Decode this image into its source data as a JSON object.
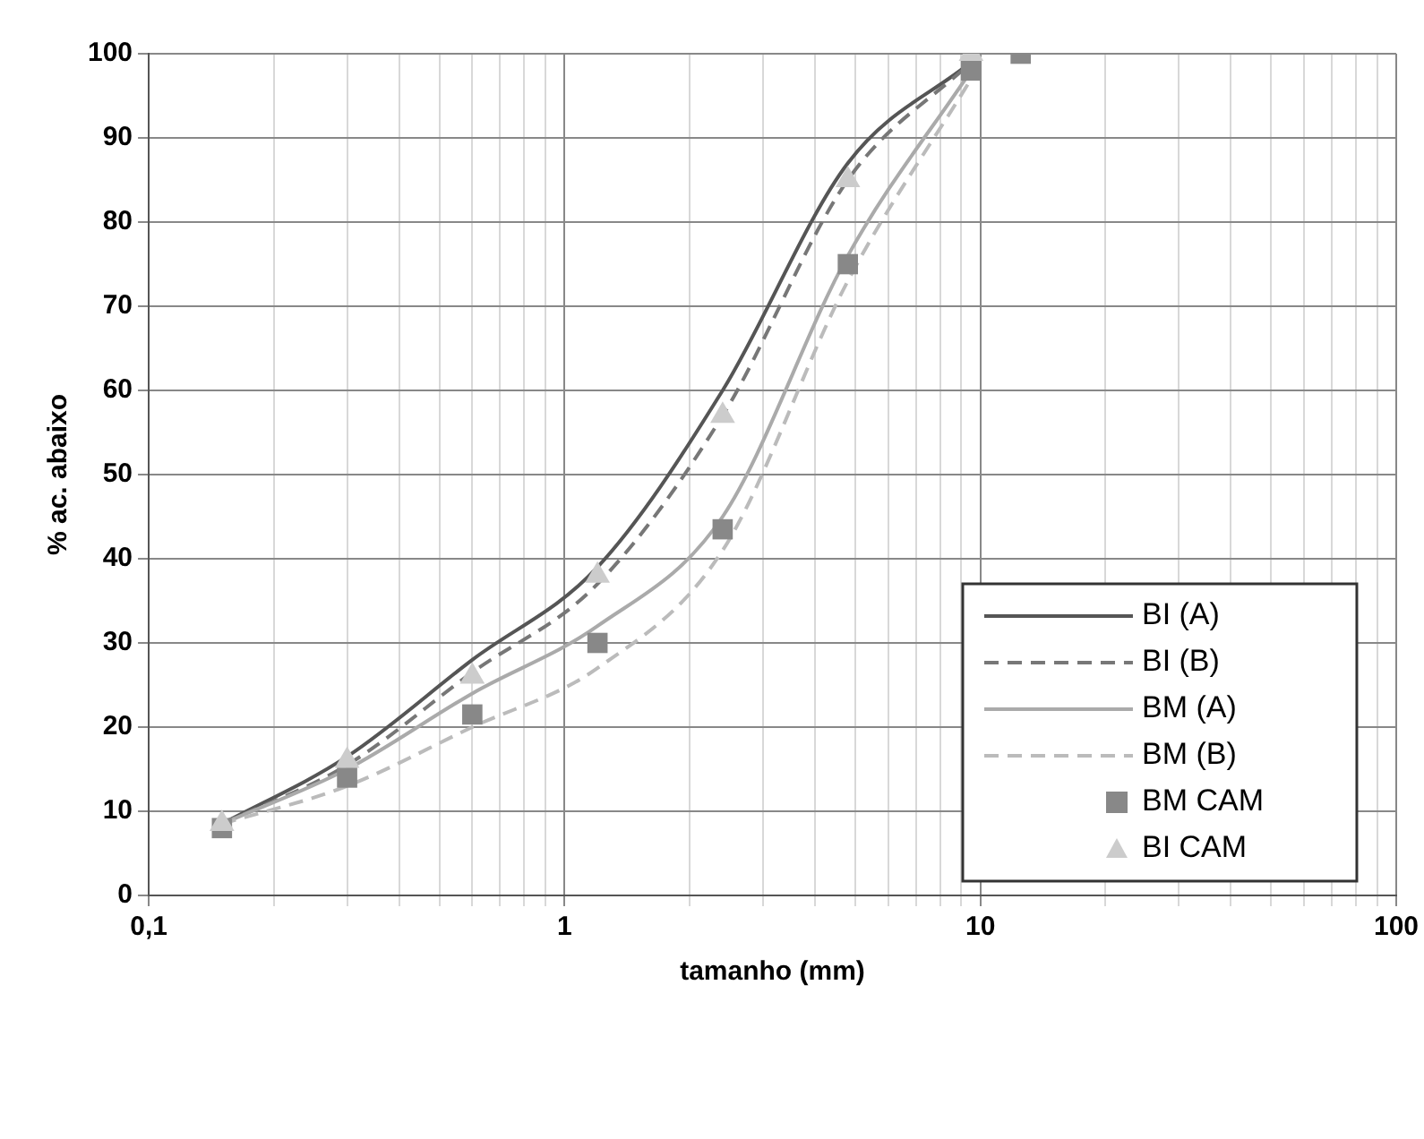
{
  "chart_data": {
    "type": "line",
    "xlabel": "tamanho (mm)",
    "ylabel": "% ac. abaixo",
    "log": "x",
    "xlim": [
      0.1,
      100
    ],
    "ylim": [
      0,
      100
    ],
    "xticks": [
      {
        "value": 0.1,
        "label": "0,1"
      },
      {
        "value": 0.2,
        "label": null
      },
      {
        "value": 0.3,
        "label": null
      },
      {
        "value": 0.4,
        "label": null
      },
      {
        "value": 0.5,
        "label": null
      },
      {
        "value": 0.6,
        "label": null
      },
      {
        "value": 0.7,
        "label": null
      },
      {
        "value": 0.8,
        "label": null
      },
      {
        "value": 0.9,
        "label": null
      },
      1,
      {
        "value": 2,
        "label": null
      },
      {
        "value": 3,
        "label": null
      },
      {
        "value": 4,
        "label": null
      },
      {
        "value": 5,
        "label": null
      },
      {
        "value": 6,
        "label": null
      },
      {
        "value": 7,
        "label": null
      },
      {
        "value": 8,
        "label": null
      },
      {
        "value": 9,
        "label": null
      },
      10,
      {
        "value": 20,
        "label": null
      },
      {
        "value": 30,
        "label": null
      },
      {
        "value": 40,
        "label": null
      },
      {
        "value": 50,
        "label": null
      },
      {
        "value": 60,
        "label": null
      },
      {
        "value": 70,
        "label": null
      },
      {
        "value": 80,
        "label": null
      },
      {
        "value": 90,
        "label": null
      },
      100
    ],
    "yticks": [
      0,
      10,
      20,
      30,
      40,
      50,
      60,
      70,
      80,
      90,
      100
    ],
    "grid": true,
    "legend": "bottom right",
    "series": [
      {
        "name": "BI (A)",
        "type": "line",
        "line_style": "solid",
        "color": "#555555",
        "x": [
          0.15,
          0.3,
          0.6,
          1.2,
          2.4,
          4.8,
          9.5
        ],
        "values": [
          8.5,
          16.5,
          28,
          39,
          60,
          87,
          99
        ]
      },
      {
        "name": "BI (B)",
        "type": "line",
        "line_style": "dashed",
        "color": "#777777",
        "x": [
          0.15,
          0.3,
          0.6,
          1.2,
          2.4,
          4.8,
          9.5
        ],
        "values": [
          8.5,
          15.5,
          26.5,
          37,
          57,
          85,
          99
        ]
      },
      {
        "name": "BM (A)",
        "type": "line",
        "line_style": "solid",
        "color": "#aaaaaa",
        "x": [
          0.15,
          0.3,
          0.6,
          1.2,
          2.4,
          4.8,
          9.5
        ],
        "values": [
          8.5,
          15,
          24,
          32,
          45,
          76,
          98
        ]
      },
      {
        "name": "BM (B)",
        "type": "line",
        "line_style": "dashed",
        "color": "#bbbbbb",
        "x": [
          0.15,
          0.3,
          0.6,
          1.2,
          2.4,
          4.8,
          9.5
        ],
        "values": [
          8.5,
          13,
          20,
          27,
          41,
          73,
          97
        ]
      },
      {
        "name": "BM CAM",
        "type": "scatter",
        "marker": "square",
        "color": "#888888",
        "x": [
          0.15,
          0.3,
          0.6,
          1.2,
          2.4,
          4.8,
          9.5,
          12.5
        ],
        "values": [
          8,
          14,
          21.5,
          30,
          43.5,
          75,
          98,
          100
        ]
      },
      {
        "name": "BI CAM",
        "type": "scatter",
        "marker": "triangle",
        "color": "#cccccc",
        "x": [
          0.15,
          0.3,
          0.6,
          1.2,
          2.4,
          4.8,
          9.5
        ],
        "values": [
          8.5,
          16,
          26,
          38,
          57,
          85,
          100
        ]
      }
    ]
  }
}
